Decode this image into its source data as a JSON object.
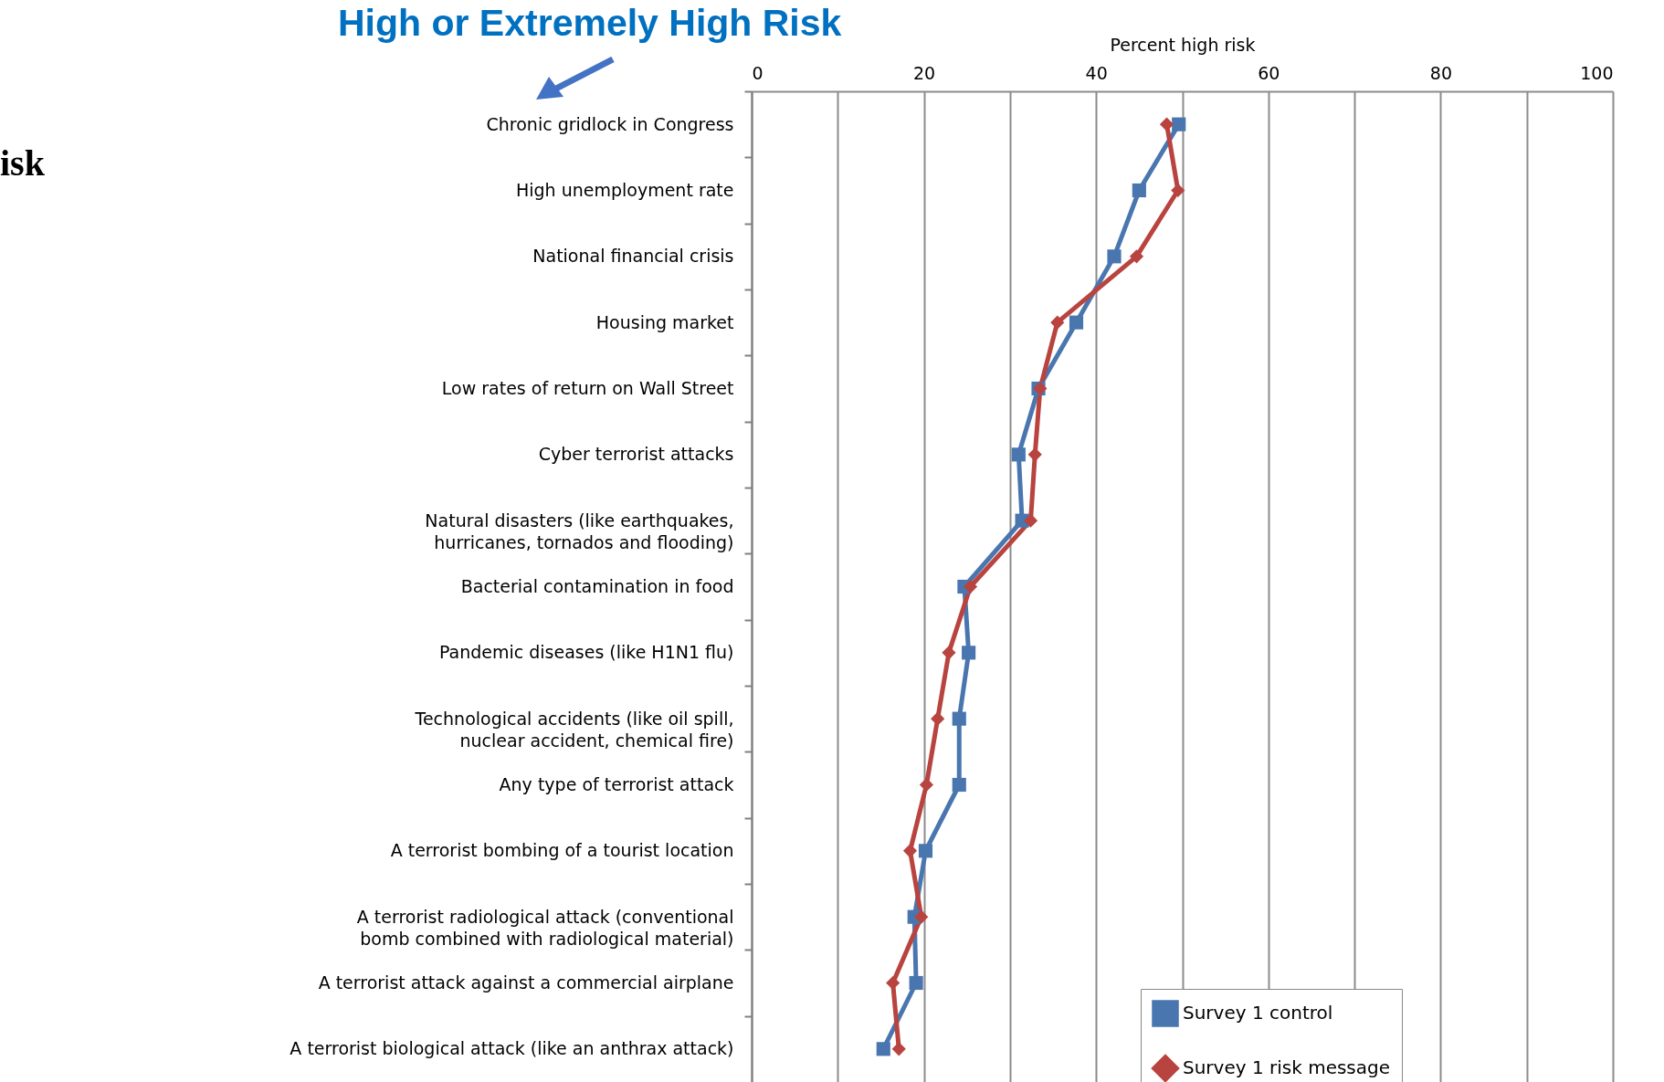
{
  "chart_data": {
    "type": "line",
    "title": "High or Extremely High Risk",
    "xlabel": "Percent high risk",
    "categories": [
      "Chronic gridlock in Congress",
      "High unemployment rate",
      "National financial crisis",
      "Housing market",
      "Low rates of return on Wall Street",
      "Cyber terrorist attacks",
      "Natural disasters (like earthquakes,\nhurricanes, tornados and flooding)",
      "Bacterial contamination in food",
      "Pandemic diseases (like H1N1 flu)",
      "Technological accidents (like oil spill,\nnuclear accident, chemical fire)",
      "Any type of terrorist attack",
      "A terrorist bombing of a tourist location",
      "A terrorist radiological attack (conventional\nbomb combined with radiological material)",
      "A terrorist attack against a commercial airplane",
      "A terrorist biological attack (like an anthrax attack)"
    ],
    "orientation": "horizontal",
    "series": [
      {
        "name": "Survey 1 control",
        "color": "#4a76b0",
        "marker": "square",
        "values": [
          49.6,
          45,
          42.1,
          37.7,
          33.3,
          31,
          31.4,
          24.7,
          25.2,
          24.1,
          24.1,
          20.2,
          18.9,
          19.1,
          15.3
        ]
      },
      {
        "name": "Survey 1 risk message",
        "color": "#b8433f",
        "marker": "diamond",
        "values": [
          48.2,
          49.5,
          44.7,
          35.5,
          33.5,
          32.9,
          32.4,
          25.4,
          22.9,
          21.6,
          20.3,
          18.4,
          19.7,
          16.4,
          17.1
        ]
      }
    ],
    "xlim": [
      0,
      100
    ],
    "xticks": [
      0,
      {
        "value": 10,
        "label": null
      },
      20,
      {
        "value": 30,
        "label": null
      },
      40,
      {
        "value": 50,
        "label": null
      },
      60,
      {
        "value": 70,
        "label": null
      },
      80,
      {
        "value": 90,
        "label": null
      },
      100
    ],
    "grid": "x",
    "legend": "bottom right",
    "line_style": "solid",
    "annotations": [
      "isk"
    ]
  }
}
